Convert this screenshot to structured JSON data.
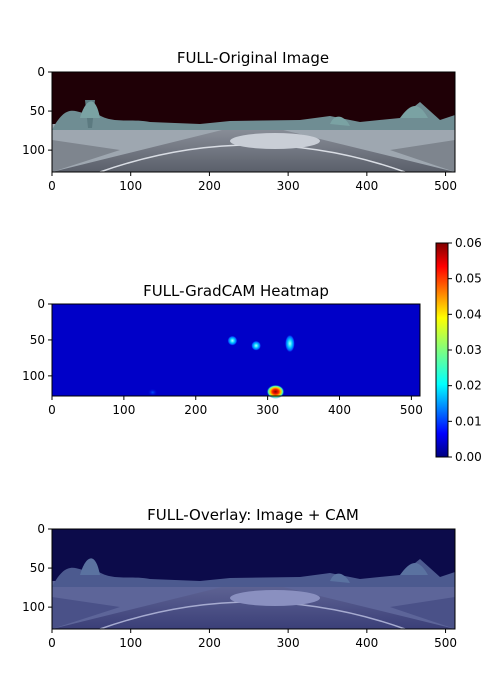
{
  "chart_data": [
    {
      "type": "image",
      "title": "FULL-Original Image",
      "xlim": [
        0,
        512
      ],
      "ylim": [
        128,
        0
      ],
      "xticks": [
        "0",
        "100",
        "200",
        "300",
        "400",
        "500"
      ],
      "yticks": [
        "0",
        "50",
        "100"
      ],
      "content": "panoramic road scene, sky rendered dark red"
    },
    {
      "type": "heatmap",
      "title": "FULL-GradCAM Heatmap",
      "xlim": [
        0,
        512
      ],
      "ylim": [
        128,
        0
      ],
      "xticks": [
        "0",
        "100",
        "200",
        "300",
        "400",
        "500"
      ],
      "yticks": [
        "0",
        "50",
        "100"
      ],
      "colormap": "jet",
      "hotspots": [
        {
          "x": 251,
          "y": 51,
          "value": 0.018
        },
        {
          "x": 284,
          "y": 58,
          "value": 0.015
        },
        {
          "x": 331,
          "y": 55,
          "value": 0.02
        },
        {
          "x": 311,
          "y": 122,
          "value": 0.06
        },
        {
          "x": 140,
          "y": 123,
          "value": 0.004
        }
      ],
      "colorbar": {
        "min": 0.0,
        "max": 0.06,
        "ticks": [
          "0.00",
          "0.01",
          "0.02",
          "0.03",
          "0.04",
          "0.05",
          "0.06"
        ]
      }
    },
    {
      "type": "image",
      "title": "FULL-Overlay: Image + CAM",
      "xlim": [
        0,
        512
      ],
      "ylim": [
        128,
        0
      ],
      "xticks": [
        "0",
        "100",
        "200",
        "300",
        "400",
        "500"
      ],
      "yticks": [
        "0",
        "50",
        "100"
      ],
      "content": "road scene blended with jet heatmap, navy tint"
    }
  ]
}
